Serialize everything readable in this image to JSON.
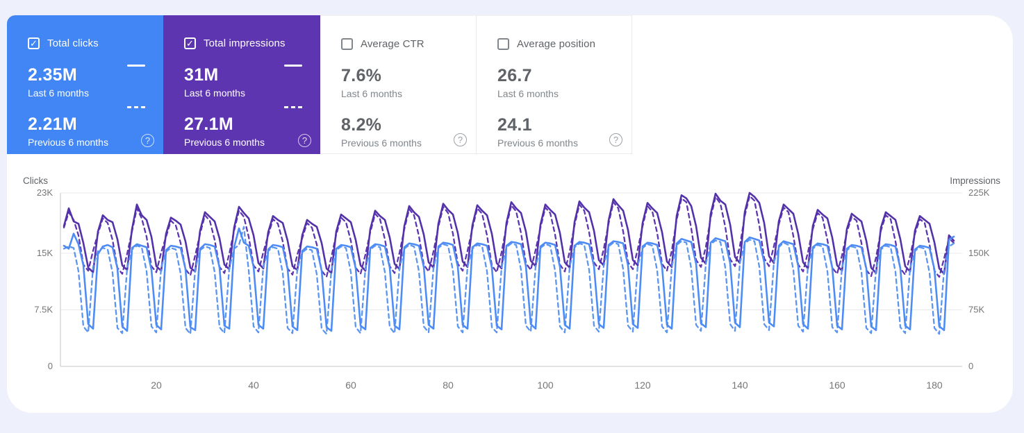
{
  "page": {
    "background": "#eef1fb",
    "panel_background": "#ffffff"
  },
  "cards": [
    {
      "id": "total-clicks",
      "label": "Total clicks",
      "checked": true,
      "bg": "#4285f4",
      "current_value": "2.35M",
      "current_label": "Last 6 months",
      "previous_value": "2.21M",
      "previous_label": "Previous 6 months",
      "help": "?"
    },
    {
      "id": "total-impressions",
      "label": "Total impressions",
      "checked": true,
      "bg": "#5e35b1",
      "current_value": "31M",
      "current_label": "Last 6 months",
      "previous_value": "27.1M",
      "previous_label": "Previous 6 months",
      "help": "?"
    },
    {
      "id": "average-ctr",
      "label": "Average CTR",
      "checked": false,
      "bg": "#ffffff",
      "current_value": "7.6%",
      "current_label": "Last 6 months",
      "previous_value": "8.2%",
      "previous_label": "Previous 6 months",
      "help": "?"
    },
    {
      "id": "average-position",
      "label": "Average position",
      "checked": false,
      "bg": "#ffffff",
      "current_value": "26.7",
      "current_label": "Last 6 months",
      "previous_value": "24.1",
      "previous_label": "Previous 6 months",
      "help": "?"
    }
  ],
  "chart_data": {
    "type": "line",
    "title": "",
    "x_axis": {
      "label": "",
      "min": 1,
      "max": 184,
      "ticks": [
        20,
        40,
        60,
        80,
        100,
        120,
        140,
        160,
        180
      ],
      "unit": "days"
    },
    "y_left": {
      "label": "Clicks",
      "max": 23,
      "ticks": [
        {
          "v": 0,
          "label": "0"
        },
        {
          "v": 7.5,
          "label": "7.5K"
        },
        {
          "v": 15,
          "label": "15K"
        },
        {
          "v": 23,
          "label": "23K"
        }
      ]
    },
    "y_right": {
      "label": "Impressions",
      "max": 225,
      "ticks": [
        {
          "v": 0,
          "label": "0"
        },
        {
          "v": 75,
          "label": "75K"
        },
        {
          "v": 150,
          "label": "150K"
        },
        {
          "v": 225,
          "label": "225K"
        }
      ]
    },
    "grid": true,
    "legend_position": "cards-above",
    "colors": {
      "clicks": "#4e8cf5",
      "impressions": "#5331a8",
      "grid": "#e9e9ec",
      "axis": "#c2c4c9",
      "tick_text": "#757575",
      "axis_title_text": "#5f6368"
    },
    "series": [
      {
        "id": "impressions_previous",
        "name": "Impressions — Previous 6 months",
        "axis": "right",
        "dash": true,
        "color": "#5e35b1",
        "unit": "K",
        "values_by_week": [
          [
            180,
            200,
            190,
            170,
            132,
            124,
            150
          ],
          [
            172,
            192,
            186,
            164,
            128,
            120,
            146
          ],
          [
            175,
            205,
            192,
            168,
            130,
            122,
            148
          ],
          [
            168,
            189,
            183,
            160,
            126,
            118,
            144
          ],
          [
            172,
            196,
            189,
            164,
            129,
            121,
            146
          ],
          [
            176,
            202,
            194,
            168,
            131,
            123,
            148
          ],
          [
            170,
            191,
            185,
            162,
            127,
            119,
            145
          ],
          [
            166,
            186,
            180,
            158,
            124,
            116,
            142
          ],
          [
            171,
            193,
            187,
            163,
            128,
            120,
            145
          ],
          [
            174,
            198,
            191,
            165,
            130,
            121,
            147
          ],
          [
            178,
            204,
            196,
            169,
            132,
            123,
            149
          ],
          [
            181,
            207,
            199,
            172,
            133,
            124,
            150
          ],
          [
            179,
            205,
            198,
            170,
            131,
            122,
            148
          ],
          [
            182,
            209,
            201,
            173,
            134,
            125,
            151
          ],
          [
            180,
            206,
            199,
            171,
            132,
            123,
            149
          ],
          [
            183,
            210,
            202,
            174,
            135,
            126,
            152
          ],
          [
            185,
            213,
            205,
            175,
            135,
            126,
            152
          ],
          [
            182,
            208,
            201,
            173,
            133,
            124,
            150
          ],
          [
            190,
            218,
            213,
            179,
            138,
            129,
            155
          ],
          [
            193,
            220,
            211,
            181,
            139,
            130,
            156
          ],
          [
            195,
            221,
            215,
            183,
            140,
            130,
            156
          ],
          [
            184,
            206,
            200,
            169,
            132,
            123,
            148
          ],
          [
            178,
            199,
            193,
            164,
            128,
            120,
            144
          ],
          [
            174,
            194,
            189,
            160,
            125,
            117,
            141
          ],
          [
            176,
            196,
            191,
            162,
            127,
            119,
            143
          ],
          [
            172,
            191,
            186,
            158,
            124,
            116,
            140
          ],
          [
            166,
            160
          ]
        ]
      },
      {
        "id": "impressions_current",
        "name": "Impressions — Last 6 months",
        "axis": "right",
        "dash": false,
        "color": "#5331a8",
        "unit": "K",
        "values_by_week": [
          [
            182,
            205,
            188,
            185,
            160,
            128,
            122
          ],
          [
            175,
            196,
            190,
            187,
            165,
            131,
            125
          ],
          [
            178,
            210,
            196,
            190,
            168,
            130,
            124
          ],
          [
            172,
            193,
            189,
            184,
            162,
            128,
            123
          ],
          [
            176,
            200,
            194,
            188,
            166,
            132,
            126
          ],
          [
            180,
            207,
            199,
            192,
            170,
            134,
            127
          ],
          [
            174,
            195,
            190,
            186,
            163,
            130,
            125
          ],
          [
            170,
            190,
            185,
            181,
            160,
            127,
            121
          ],
          [
            175,
            197,
            192,
            187,
            164,
            131,
            124
          ],
          [
            178,
            202,
            195,
            190,
            167,
            133,
            126
          ],
          [
            182,
            208,
            200,
            194,
            171,
            135,
            128
          ],
          [
            185,
            211,
            203,
            197,
            173,
            136,
            129
          ],
          [
            183,
            209,
            202,
            196,
            172,
            134,
            127
          ],
          [
            186,
            213,
            205,
            199,
            175,
            137,
            130
          ],
          [
            184,
            210,
            203,
            197,
            173,
            135,
            128
          ],
          [
            187,
            214,
            206,
            200,
            176,
            138,
            131
          ],
          [
            189,
            217,
            209,
            202,
            177,
            138,
            131
          ],
          [
            186,
            212,
            205,
            199,
            174,
            136,
            129
          ],
          [
            195,
            222,
            218,
            208,
            182,
            141,
            133
          ],
          [
            198,
            224,
            215,
            210,
            184,
            142,
            134
          ],
          [
            200,
            225,
            220,
            212,
            186,
            143,
            134
          ],
          [
            188,
            210,
            204,
            198,
            172,
            135,
            127
          ],
          [
            182,
            203,
            197,
            192,
            167,
            131,
            124
          ],
          [
            178,
            198,
            193,
            188,
            163,
            128,
            121
          ],
          [
            180,
            200,
            195,
            190,
            165,
            130,
            123
          ],
          [
            176,
            195,
            190,
            185,
            161,
            127,
            120
          ],
          [
            170,
            163
          ]
        ]
      },
      {
        "id": "clicks_previous",
        "name": "Clicks — Previous 6 months",
        "axis": "left",
        "dash": true,
        "color": "#5b95f0",
        "unit": "K",
        "values_by_week": [
          [
            15.6,
            15.9,
            15.7,
            12.6,
            5.3,
            4.5,
            13.2
          ],
          [
            15.3,
            15.7,
            15.5,
            12.4,
            5.1,
            4.4,
            13.0
          ],
          [
            15.5,
            16.0,
            15.8,
            12.6,
            5.3,
            4.5,
            13.1
          ],
          [
            15.2,
            15.7,
            15.5,
            12.3,
            5.1,
            4.3,
            12.9
          ],
          [
            15.4,
            15.9,
            15.7,
            12.5,
            5.2,
            4.4,
            13.0
          ],
          [
            15.6,
            16.1,
            18.5,
            12.7,
            5.3,
            4.5,
            13.2
          ],
          [
            15.3,
            15.8,
            15.6,
            12.4,
            5.1,
            4.4,
            12.9
          ],
          [
            15.1,
            15.6,
            15.4,
            12.2,
            5.0,
            4.3,
            12.8
          ],
          [
            15.4,
            15.9,
            15.7,
            12.5,
            5.2,
            4.4,
            13.0
          ],
          [
            15.5,
            16.0,
            15.8,
            12.5,
            5.2,
            4.4,
            13.0
          ],
          [
            15.6,
            16.1,
            15.9,
            12.6,
            5.3,
            4.5,
            13.1
          ],
          [
            15.7,
            16.2,
            16.0,
            12.7,
            5.3,
            4.5,
            13.2
          ],
          [
            15.6,
            16.1,
            15.9,
            12.6,
            5.2,
            4.5,
            13.1
          ],
          [
            15.8,
            16.3,
            16.1,
            12.8,
            5.4,
            4.6,
            13.3
          ],
          [
            15.7,
            16.2,
            16.0,
            12.7,
            5.3,
            4.5,
            13.2
          ],
          [
            15.8,
            16.3,
            16.1,
            12.8,
            5.4,
            4.6,
            13.3
          ],
          [
            15.9,
            16.4,
            16.2,
            12.9,
            5.4,
            4.6,
            13.4
          ],
          [
            15.7,
            16.2,
            16.0,
            12.7,
            5.3,
            4.5,
            13.2
          ],
          [
            16.1,
            16.6,
            16.4,
            13.0,
            5.5,
            4.7,
            13.6
          ],
          [
            16.2,
            16.7,
            16.5,
            13.1,
            5.6,
            4.7,
            13.7
          ],
          [
            16.3,
            16.8,
            16.6,
            13.2,
            5.6,
            4.8,
            13.8
          ],
          [
            15.8,
            16.4,
            16.1,
            12.8,
            5.4,
            4.6,
            13.3
          ],
          [
            15.6,
            16.1,
            15.9,
            12.6,
            5.2,
            4.5,
            13.1
          ],
          [
            15.4,
            15.9,
            15.7,
            12.5,
            5.1,
            4.4,
            12.9
          ],
          [
            15.5,
            16.0,
            15.8,
            12.5,
            5.2,
            4.4,
            13.0
          ],
          [
            15.3,
            15.8,
            15.6,
            12.4,
            5.1,
            4.3,
            12.9
          ],
          [
            15.9,
            16.3
          ]
        ]
      },
      {
        "id": "clicks_current",
        "name": "Clicks — Last 6 months",
        "axis": "left",
        "dash": false,
        "color": "#4e8cf5",
        "unit": "K",
        "values_by_week": [
          [
            16.0,
            15.6,
            17.6,
            16.2,
            13.4,
            5.6,
            5.0
          ],
          [
            14.9,
            15.9,
            16.1,
            15.8,
            13.0,
            5.3,
            4.7
          ],
          [
            15.7,
            16.2,
            16.0,
            15.8,
            12.8,
            5.5,
            4.9
          ],
          [
            15.4,
            16.0,
            15.9,
            15.7,
            12.9,
            5.2,
            4.8
          ],
          [
            15.6,
            16.2,
            16.1,
            15.9,
            13.1,
            5.4,
            5.0
          ],
          [
            15.8,
            18.3,
            16.4,
            16.0,
            13.2,
            5.5,
            5.0
          ],
          [
            15.5,
            16.1,
            16.0,
            15.8,
            12.9,
            5.3,
            4.8
          ],
          [
            15.3,
            15.9,
            15.8,
            15.6,
            12.7,
            5.2,
            4.7
          ],
          [
            15.6,
            16.1,
            16.0,
            15.8,
            13.0,
            5.4,
            4.9
          ],
          [
            15.7,
            16.2,
            16.1,
            15.9,
            13.1,
            5.4,
            4.9
          ],
          [
            15.8,
            16.3,
            16.2,
            16.0,
            13.2,
            5.5,
            5.0
          ],
          [
            15.9,
            16.4,
            16.3,
            16.1,
            13.2,
            5.5,
            5.0
          ],
          [
            15.8,
            16.3,
            16.2,
            16.0,
            13.1,
            5.4,
            4.9
          ],
          [
            16.0,
            16.5,
            16.4,
            16.2,
            13.3,
            5.6,
            5.0
          ],
          [
            15.9,
            16.4,
            16.3,
            16.1,
            13.2,
            5.5,
            5.0
          ],
          [
            16.0,
            16.5,
            16.4,
            16.2,
            13.3,
            5.6,
            5.1
          ],
          [
            16.1,
            16.6,
            16.5,
            16.3,
            13.4,
            5.6,
            5.1
          ],
          [
            15.9,
            16.4,
            16.3,
            16.1,
            13.2,
            5.5,
            5.0
          ],
          [
            16.3,
            16.9,
            16.7,
            16.5,
            13.6,
            5.7,
            5.2
          ],
          [
            16.4,
            17.0,
            16.8,
            16.6,
            13.7,
            5.8,
            5.2
          ],
          [
            16.5,
            17.1,
            16.9,
            16.7,
            13.8,
            5.8,
            5.3
          ],
          [
            16.0,
            16.6,
            16.4,
            16.2,
            13.3,
            5.6,
            5.0
          ],
          [
            15.8,
            16.3,
            16.2,
            16.0,
            13.1,
            5.4,
            4.9
          ],
          [
            15.6,
            16.1,
            16.0,
            15.8,
            13.0,
            5.3,
            4.8
          ],
          [
            15.7,
            16.2,
            16.1,
            15.9,
            13.0,
            5.4,
            4.9
          ],
          [
            15.5,
            16.0,
            15.9,
            15.7,
            12.9,
            5.3,
            4.8
          ],
          [
            16.8,
            17.2
          ]
        ]
      }
    ]
  }
}
